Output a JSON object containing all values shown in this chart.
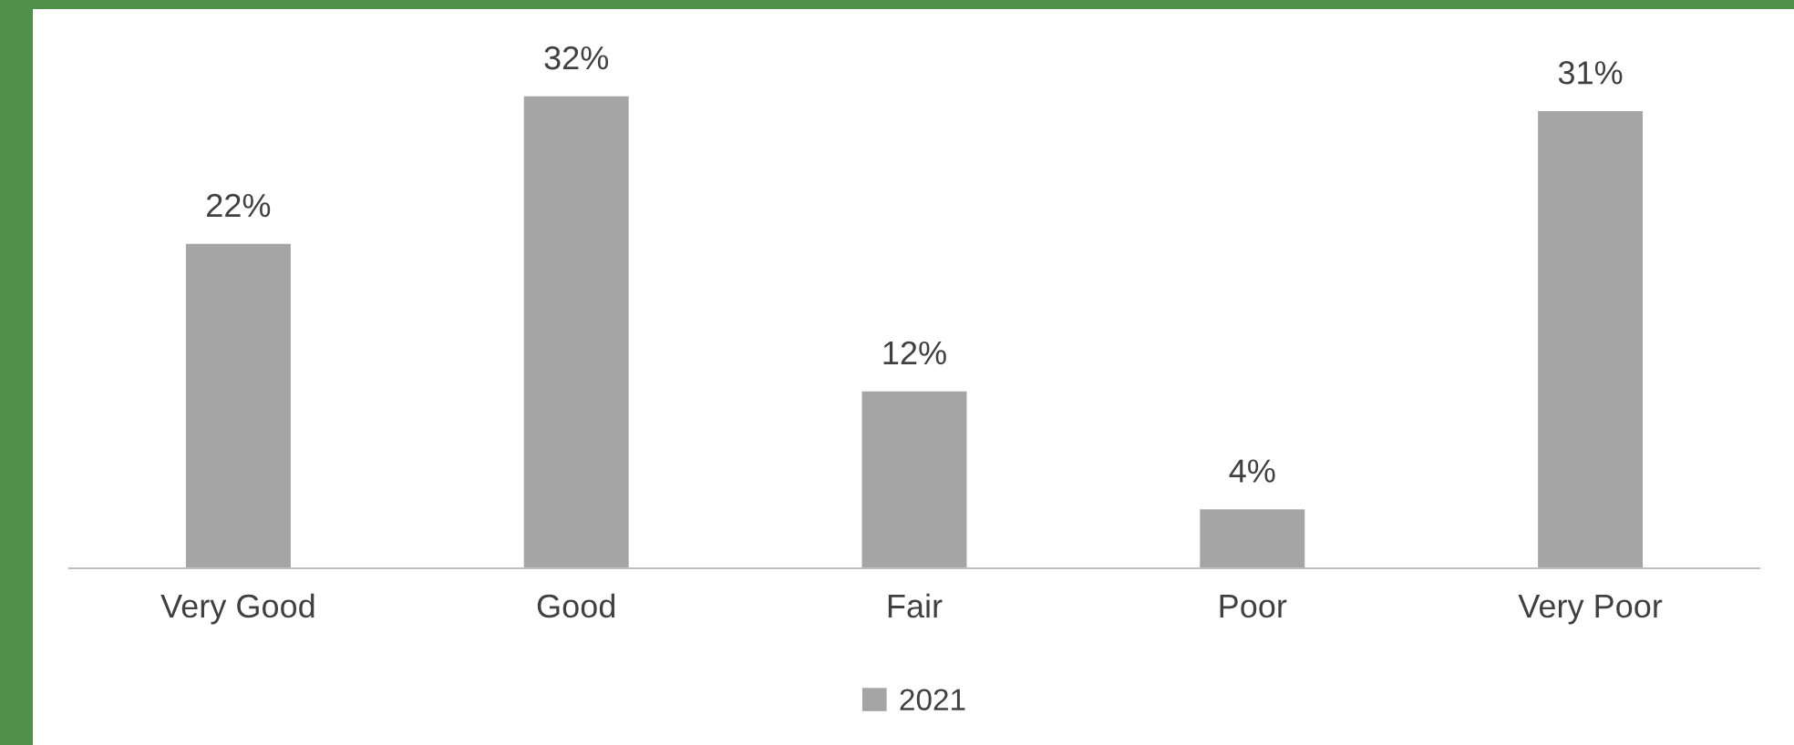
{
  "chart_data": {
    "type": "bar",
    "categories": [
      "Very Good",
      "Good",
      "Fair",
      "Poor",
      "Very Poor"
    ],
    "series": [
      {
        "name": "2021",
        "color": "#a5a5a5",
        "values": [
          22,
          32,
          12,
          4,
          31
        ],
        "value_labels": [
          "22%",
          "32%",
          "12%",
          "4%",
          "31%"
        ]
      }
    ],
    "legend": "bottom",
    "grid": false,
    "tick_labels": "x"
  }
}
